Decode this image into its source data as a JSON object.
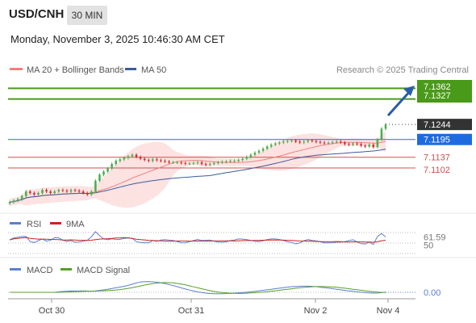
{
  "header": {
    "symbol": "USD/CNH",
    "timeframe": "30 MIN",
    "datetime": "Monday, November 3, 2025 10:46:30 AM CET",
    "copyright": "Research © 2025 Trading Central"
  },
  "legend": {
    "ma20_label": "MA 20 + Bollinger Bands",
    "ma50_label": "MA 50",
    "rsi_label": "RSI",
    "rsi_ma_label": "9MA",
    "macd_label": "MACD",
    "macd_signal_label": "MACD Signal"
  },
  "colors": {
    "bull": "#4caf50",
    "bear": "#d32f2f",
    "ma20": "#f08080",
    "bollinger_fill": "#fde2e2",
    "ma50": "#3b5b9c",
    "resistance": "#4a9a1a",
    "pivot": "#1e6be0",
    "support": "#d05050",
    "current": "#333333",
    "rsi": "#5b7fd0",
    "rsi_ma": "#cc2222",
    "macd": "#5b7fd0",
    "macd_signal": "#55a02a",
    "arrow": "#2a5ca8"
  },
  "chart_data": [
    {
      "type": "candlestick",
      "title": "USD/CNH 30 MIN",
      "x_ticks": [
        "Oct 30",
        "Oct 31",
        "Nov 2",
        "Nov 4"
      ],
      "ylim": [
        7.097,
        7.14
      ],
      "levels": [
        {
          "name": "resistance",
          "value": 7.1362,
          "label": "7.1362"
        },
        {
          "name": "resistance",
          "value": 7.1327,
          "label": "7.1327"
        },
        {
          "name": "current",
          "value": 7.1244,
          "label": "7.1244"
        },
        {
          "name": "pivot",
          "value": 7.1195,
          "label": "7.1195"
        },
        {
          "name": "support",
          "value": 7.1137,
          "label": "7.1137"
        },
        {
          "name": "support",
          "value": 7.1102,
          "label": "7.1102"
        }
      ],
      "close": [
        7.099,
        7.0995,
        7.1,
        7.101,
        7.1025,
        7.102,
        7.1015,
        7.102,
        7.103,
        7.1025,
        7.102,
        7.1025,
        7.103,
        7.1028,
        7.1025,
        7.103,
        7.1028,
        7.1025,
        7.102,
        7.1015,
        7.1025,
        7.106,
        7.108,
        7.109,
        7.11,
        7.1115,
        7.1125,
        7.113,
        7.1135,
        7.114,
        7.1145,
        7.1138,
        7.1132,
        7.1128,
        7.1125,
        7.113,
        7.1127,
        7.1125,
        7.1123,
        7.112,
        7.112,
        7.112,
        7.1118,
        7.1116,
        7.1117,
        7.1118,
        7.112,
        7.1115,
        7.1112,
        7.1115,
        7.1118,
        7.112,
        7.1122,
        7.1123,
        7.1125,
        7.1125,
        7.1128,
        7.1132,
        7.1138,
        7.1145,
        7.1152,
        7.1158,
        7.1165,
        7.1172,
        7.1178,
        7.1182,
        7.1185,
        7.1188,
        7.119,
        7.1192,
        7.1188,
        7.1185,
        7.1188,
        7.1192,
        7.119,
        7.1187,
        7.1185,
        7.1183,
        7.1184,
        7.1186,
        7.1188,
        7.1185,
        7.118,
        7.1178,
        7.1182,
        7.118,
        7.1175,
        7.1172,
        7.1178,
        7.117,
        7.1195,
        7.123,
        7.1244
      ],
      "rsi": {
        "series": [
          {
            "name": "RSI"
          },
          {
            "name": "9MA"
          }
        ],
        "ticks": [
          "61.59",
          "50"
        ],
        "current": 61.59
      },
      "macd": {
        "series": [
          {
            "name": "MACD"
          },
          {
            "name": "MACD Signal"
          }
        ],
        "ticks": [
          "0.00"
        ],
        "current": 0.0
      }
    }
  ]
}
